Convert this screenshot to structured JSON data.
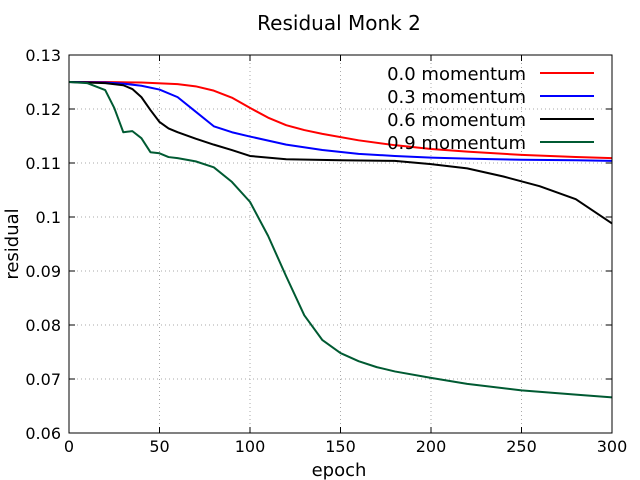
{
  "chart_data": {
    "type": "line",
    "title": "Residual Monk 2",
    "xlabel": "epoch",
    "ylabel": "residual",
    "xlim": [
      0,
      300
    ],
    "ylim": [
      0.06,
      0.13
    ],
    "x_ticks": [
      0,
      50,
      100,
      150,
      200,
      250,
      300
    ],
    "y_ticks": [
      0.06,
      0.07,
      0.08,
      0.09,
      0.1,
      0.11,
      0.12,
      0.13
    ],
    "x_tick_labels": [
      "0",
      "50",
      "100",
      "150",
      "200",
      "250",
      "300"
    ],
    "y_tick_labels": [
      "0.06",
      "0.07",
      "0.08",
      "0.09",
      "0.1",
      "0.11",
      "0.12",
      "0.13"
    ],
    "grid": true,
    "legend_position": "top-right",
    "series": [
      {
        "name": "0.0 momentum",
        "color": "#ff0000",
        "x": [
          0,
          20,
          40,
          60,
          70,
          80,
          90,
          100,
          110,
          120,
          130,
          140,
          160,
          180,
          200,
          220,
          250,
          280,
          300
        ],
        "y": [
          0.125,
          0.125,
          0.1249,
          0.1246,
          0.1242,
          0.1234,
          0.1221,
          0.1202,
          0.1184,
          0.117,
          0.1161,
          0.1154,
          0.1142,
          0.1133,
          0.1126,
          0.1121,
          0.1115,
          0.1111,
          0.1109
        ]
      },
      {
        "name": "0.3 momentum",
        "color": "#0000ff",
        "x": [
          0,
          20,
          30,
          40,
          50,
          60,
          70,
          80,
          90,
          100,
          120,
          140,
          160,
          180,
          200,
          220,
          250,
          280,
          300
        ],
        "y": [
          0.125,
          0.1249,
          0.1247,
          0.1243,
          0.1236,
          0.1222,
          0.1195,
          0.1168,
          0.1157,
          0.1149,
          0.1134,
          0.1124,
          0.1117,
          0.1113,
          0.111,
          0.1108,
          0.1106,
          0.1105,
          0.1104
        ]
      },
      {
        "name": "0.6 momentum",
        "color": "#000000",
        "x": [
          0,
          20,
          30,
          35,
          40,
          45,
          50,
          55,
          60,
          70,
          80,
          90,
          100,
          120,
          150,
          180,
          200,
          220,
          240,
          260,
          280,
          300
        ],
        "y": [
          0.125,
          0.1248,
          0.1244,
          0.1237,
          0.1222,
          0.1198,
          0.1176,
          0.1164,
          0.1157,
          0.1145,
          0.1134,
          0.1124,
          0.1113,
          0.1107,
          0.1105,
          0.1104,
          0.1098,
          0.109,
          0.1075,
          0.1057,
          0.1033,
          0.0988
        ]
      },
      {
        "name": "0.9 momentum",
        "color": "#005a32",
        "x": [
          0,
          10,
          20,
          25,
          30,
          35,
          40,
          45,
          50,
          55,
          60,
          70,
          80,
          90,
          100,
          110,
          120,
          130,
          140,
          150,
          160,
          170,
          180,
          200,
          220,
          250,
          280,
          300
        ],
        "y": [
          0.125,
          0.1248,
          0.1235,
          0.1202,
          0.1157,
          0.1159,
          0.1146,
          0.112,
          0.1118,
          0.1111,
          0.1109,
          0.1103,
          0.1092,
          0.1065,
          0.1028,
          0.0965,
          0.089,
          0.0818,
          0.0772,
          0.0748,
          0.0733,
          0.0722,
          0.0714,
          0.0702,
          0.0691,
          0.0679,
          0.0671,
          0.0666
        ]
      }
    ]
  }
}
